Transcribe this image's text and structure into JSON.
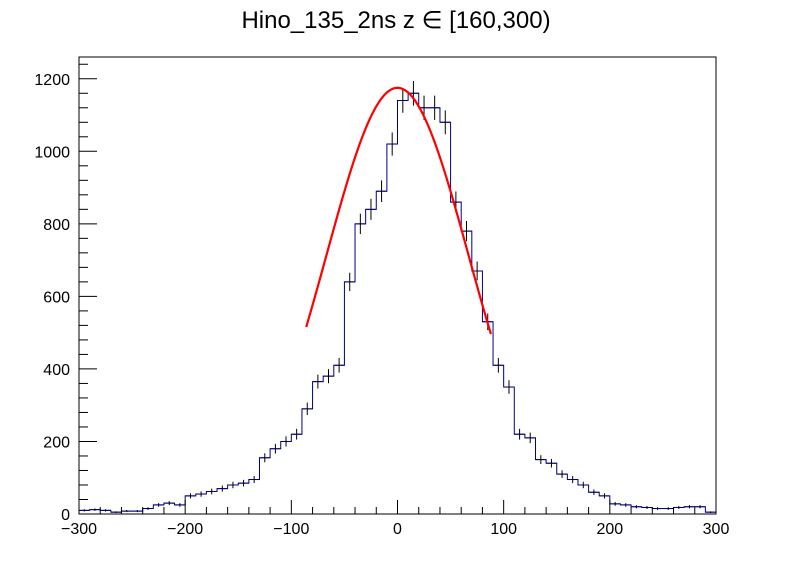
{
  "chart_data": {
    "type": "bar",
    "title": "Hino_135_2ns z  ∈ [160,300)",
    "xlabel": "",
    "ylabel": "",
    "xlim": [
      -300,
      300
    ],
    "ylim": [
      0,
      1260
    ],
    "x_ticks": [
      -300,
      -200,
      -100,
      0,
      100,
      200,
      300
    ],
    "y_ticks": [
      0,
      200,
      400,
      600,
      800,
      1000,
      1200
    ],
    "grid": false,
    "legend": "none",
    "histogram": {
      "name": "",
      "color": "#000080",
      "bin_edges_start": -300,
      "bin_width": 10,
      "values": [
        10,
        12,
        10,
        5,
        8,
        8,
        15,
        25,
        30,
        25,
        50,
        55,
        62,
        70,
        80,
        85,
        95,
        155,
        180,
        200,
        220,
        290,
        365,
        380,
        410,
        640,
        800,
        840,
        890,
        1020,
        1140,
        1160,
        1120,
        1120,
        1080,
        860,
        780,
        670,
        530,
        410,
        350,
        220,
        210,
        150,
        140,
        110,
        95,
        80,
        60,
        50,
        28,
        25,
        20,
        18,
        15,
        15,
        18,
        20,
        20,
        5
      ]
    },
    "fit": {
      "name": "",
      "color": "#ff0000",
      "x_range": [
        -86,
        88
      ],
      "peak": 1175,
      "mean": 0,
      "sigma": 67
    }
  }
}
